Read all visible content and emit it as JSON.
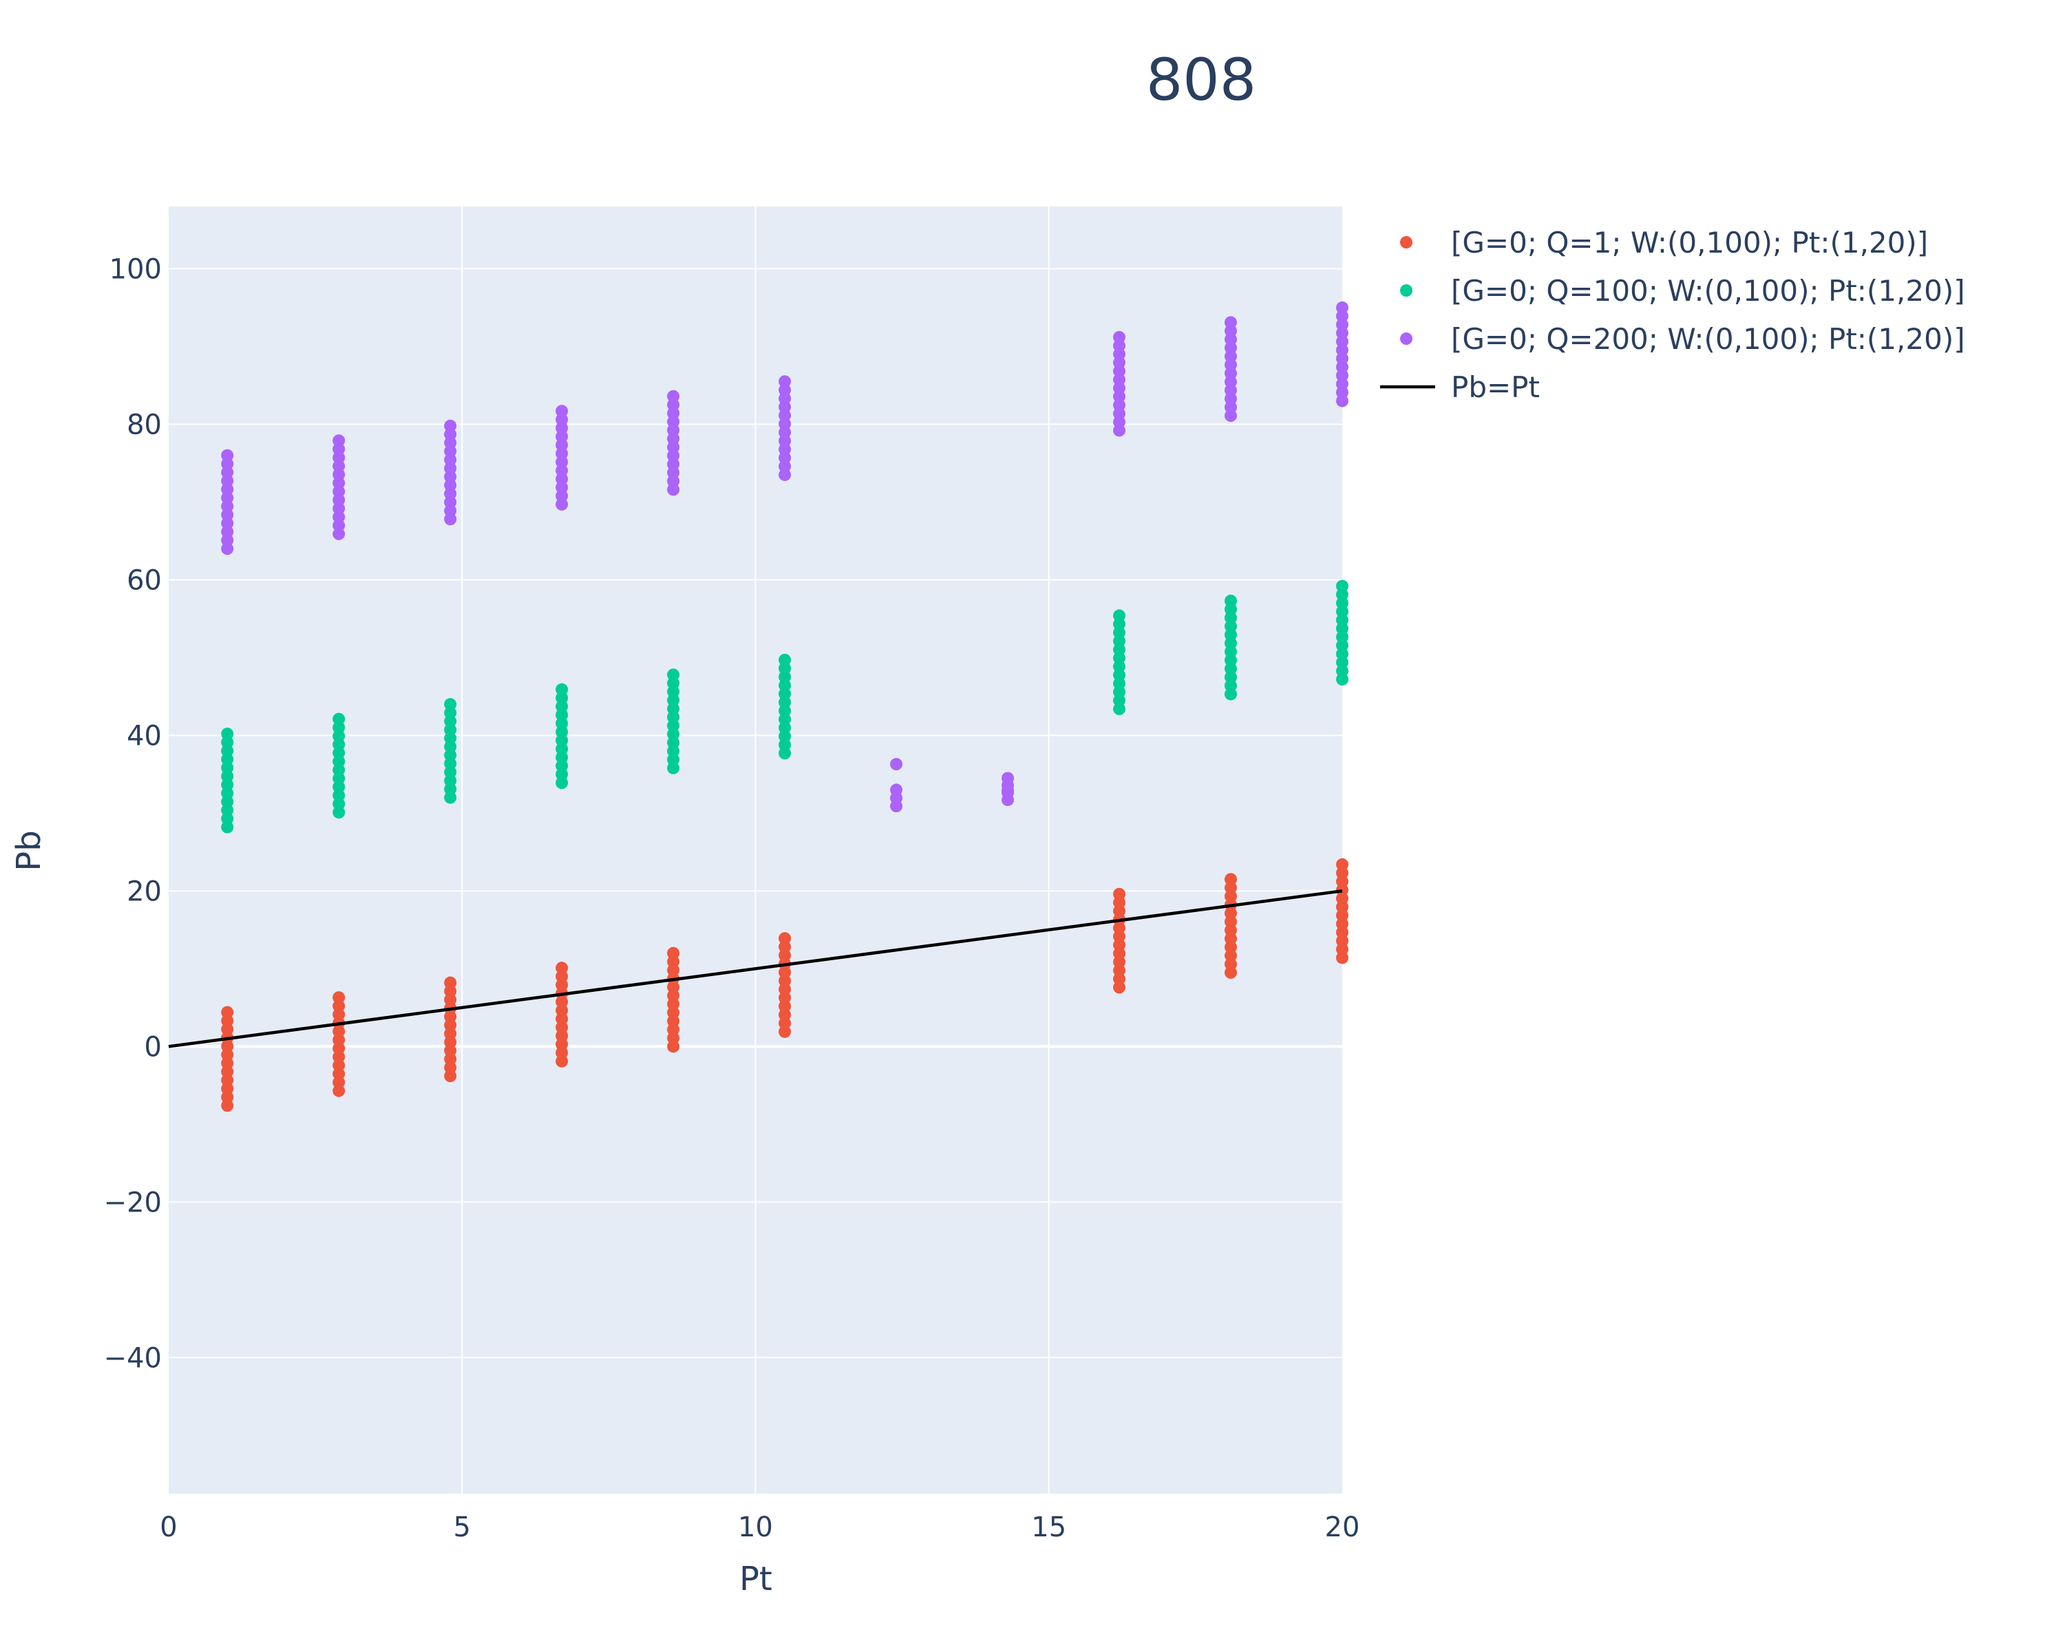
{
  "chart_data": {
    "type": "scatter",
    "title": "808",
    "xlabel": "Pt",
    "ylabel": "Pb",
    "xlim": [
      0,
      20
    ],
    "ylim": [
      -57.5,
      108
    ],
    "xticks": [
      0,
      5,
      10,
      15,
      20
    ],
    "xtick_labels": [
      "0",
      "5",
      "10",
      "15",
      "20"
    ],
    "yticks": [
      -40,
      -20,
      0,
      20,
      40,
      60,
      80,
      100
    ],
    "ytick_labels": [
      "−40",
      "−20",
      "0",
      "20",
      "40",
      "60",
      "80",
      "100"
    ],
    "grid": true,
    "legend_placement": "right",
    "series": [
      {
        "name": "[G=0; Q=1; W:(0,100); Pt:(1,20)]",
        "mode": "markers",
        "color": "#ef553b",
        "columns": [
          {
            "x": 1.0,
            "ymin": -7.6,
            "ymax": 4.4
          },
          {
            "x": 2.9,
            "ymin": -5.7,
            "ymax": 6.3
          },
          {
            "x": 4.8,
            "ymin": -3.8,
            "ymax": 8.2
          },
          {
            "x": 6.7,
            "ymin": -1.9,
            "ymax": 10.1
          },
          {
            "x": 8.6,
            "ymin": 0.0,
            "ymax": 12.0
          },
          {
            "x": 10.5,
            "ymin": 1.9,
            "ymax": 13.9
          },
          {
            "x": 14.3,
            "ymin": 32.9,
            "ymax": 33.2
          },
          {
            "x": 16.2,
            "ymin": 7.6,
            "ymax": 19.6
          },
          {
            "x": 18.1,
            "ymin": 9.5,
            "ymax": 21.5
          },
          {
            "x": 20.0,
            "ymin": 11.4,
            "ymax": 23.4
          }
        ]
      },
      {
        "name": "[G=0; Q=100; W:(0,100); Pt:(1,20)]",
        "mode": "markers",
        "color": "#00cc96",
        "columns": [
          {
            "x": 1.0,
            "ymin": 28.2,
            "ymax": 40.2
          },
          {
            "x": 2.9,
            "ymin": 30.1,
            "ymax": 42.1
          },
          {
            "x": 4.8,
            "ymin": 32.0,
            "ymax": 44.0
          },
          {
            "x": 6.7,
            "ymin": 33.9,
            "ymax": 45.9
          },
          {
            "x": 8.6,
            "ymin": 35.8,
            "ymax": 47.8
          },
          {
            "x": 10.5,
            "ymin": 37.7,
            "ymax": 49.7
          },
          {
            "x": 16.2,
            "ymin": 43.4,
            "ymax": 55.4
          },
          {
            "x": 18.1,
            "ymin": 45.3,
            "ymax": 57.3
          },
          {
            "x": 20.0,
            "ymin": 47.2,
            "ymax": 59.2
          }
        ]
      },
      {
        "name": "[G=0; Q=200; W:(0,100); Pt:(1,20)]",
        "mode": "markers",
        "color": "#ab63fa",
        "columns": [
          {
            "x": 1.0,
            "ymin": 64.0,
            "ymax": 76.0
          },
          {
            "x": 2.9,
            "ymin": 65.9,
            "ymax": 77.9
          },
          {
            "x": 4.8,
            "ymin": 67.8,
            "ymax": 79.8
          },
          {
            "x": 6.7,
            "ymin": 69.7,
            "ymax": 81.7
          },
          {
            "x": 8.6,
            "ymin": 71.6,
            "ymax": 83.6
          },
          {
            "x": 10.5,
            "ymin": 73.5,
            "ymax": 85.5
          },
          {
            "x": 12.4,
            "ymin": 30.9,
            "ymax": 33.0
          },
          {
            "x": 12.4,
            "ymin": 36.3,
            "ymax": 36.3
          },
          {
            "x": 14.3,
            "ymin": 31.7,
            "ymax": 34.5
          },
          {
            "x": 16.2,
            "ymin": 79.2,
            "ymax": 91.2
          },
          {
            "x": 18.1,
            "ymin": 81.1,
            "ymax": 93.1
          },
          {
            "x": 20.0,
            "ymin": 83.0,
            "ymax": 95.0
          }
        ]
      },
      {
        "name": "Pb=Pt",
        "mode": "line",
        "color": "#000000",
        "x": [
          0,
          20
        ],
        "y": [
          0,
          20
        ]
      }
    ]
  }
}
